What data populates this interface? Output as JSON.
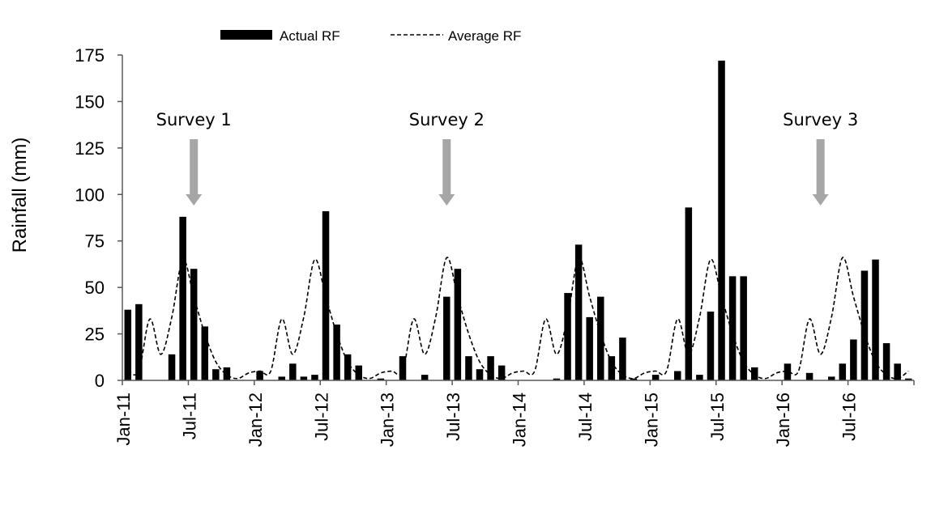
{
  "chart_data": {
    "type": "bar",
    "title": "",
    "xlabel": "",
    "ylabel": "Rainfall (mm)",
    "ylim": [
      0,
      175
    ],
    "y_ticks": [
      "0",
      "25",
      "50",
      "75",
      "100",
      "125",
      "150",
      "175"
    ],
    "x_tick_labels": [
      "Jan-11",
      "Jul-11",
      "Jan-12",
      "Jul-12",
      "Jan-13",
      "Jul-13",
      "Jan-14",
      "Jul-14",
      "Jan-15",
      "Jul-15",
      "Jan-16",
      "Jul-16"
    ],
    "x": [
      "Jan-11",
      "Feb-11",
      "Mar-11",
      "Apr-11",
      "May-11",
      "Jun-11",
      "Jul-11",
      "Aug-11",
      "Sep-11",
      "Oct-11",
      "Nov-11",
      "Dec-11",
      "Jan-12",
      "Feb-12",
      "Mar-12",
      "Apr-12",
      "May-12",
      "Jun-12",
      "Jul-12",
      "Aug-12",
      "Sep-12",
      "Oct-12",
      "Nov-12",
      "Dec-12",
      "Jan-13",
      "Feb-13",
      "Mar-13",
      "Apr-13",
      "May-13",
      "Jun-13",
      "Jul-13",
      "Aug-13",
      "Sep-13",
      "Oct-13",
      "Nov-13",
      "Dec-13",
      "Jan-14",
      "Feb-14",
      "Mar-14",
      "Apr-14",
      "May-14",
      "Jun-14",
      "Jul-14",
      "Aug-14",
      "Sep-14",
      "Oct-14",
      "Nov-14",
      "Dec-14",
      "Jan-15",
      "Feb-15",
      "Mar-15",
      "Apr-15",
      "May-15",
      "Jun-15",
      "Jul-15",
      "Aug-15",
      "Sep-15",
      "Oct-15",
      "Nov-15",
      "Dec-15",
      "Jan-16",
      "Feb-16",
      "Mar-16",
      "Apr-16",
      "May-16",
      "Jun-16",
      "Jul-16",
      "Aug-16",
      "Sep-16",
      "Oct-16",
      "Nov-16",
      "Dec-16"
    ],
    "series": [
      {
        "name": "Actual RF",
        "style": "bar",
        "color": "#000000",
        "values": [
          38,
          41,
          0,
          0,
          14,
          88,
          60,
          29,
          6,
          7,
          0,
          0,
          5,
          0,
          2,
          9,
          2,
          3,
          91,
          30,
          14,
          8,
          0,
          1,
          0,
          13,
          0,
          3,
          0,
          45,
          60,
          13,
          6,
          13,
          8,
          0,
          0,
          0,
          0,
          1,
          47,
          73,
          34,
          45,
          13,
          23,
          1,
          0,
          3,
          0,
          5,
          93,
          3,
          37,
          172,
          56,
          56,
          7,
          0,
          0,
          9,
          0,
          4,
          0,
          2,
          9,
          22,
          59,
          65,
          20,
          9,
          1
        ]
      },
      {
        "name": "Average RF",
        "style": "dashed-line",
        "color": "#000000",
        "values": [
          5,
          5,
          33,
          14,
          34,
          65,
          45,
          25,
          10,
          3,
          1,
          4,
          5,
          5,
          33,
          14,
          34,
          65,
          45,
          25,
          10,
          3,
          1,
          4,
          5,
          5,
          33,
          14,
          34,
          66,
          45,
          25,
          10,
          3,
          1,
          4,
          5,
          5,
          33,
          14,
          34,
          66,
          45,
          25,
          10,
          3,
          1,
          4,
          5,
          5,
          33,
          14,
          34,
          65,
          45,
          25,
          10,
          3,
          1,
          4,
          5,
          5,
          33,
          14,
          34,
          66,
          45,
          25,
          10,
          3,
          1,
          5
        ]
      }
    ],
    "annotations": [
      {
        "label": "Survey 1",
        "at": "Jul-11",
        "arrow_color": "#A6A6A6"
      },
      {
        "label": "Survey 2",
        "at": "Jun-13",
        "arrow_color": "#A6A6A6"
      },
      {
        "label": "Survey 3",
        "at": "Apr-16",
        "arrow_color": "#A6A6A6"
      }
    ],
    "legend": {
      "position": "top-center",
      "entries": [
        "Actual RF",
        "Average RF"
      ]
    },
    "grid": false
  }
}
